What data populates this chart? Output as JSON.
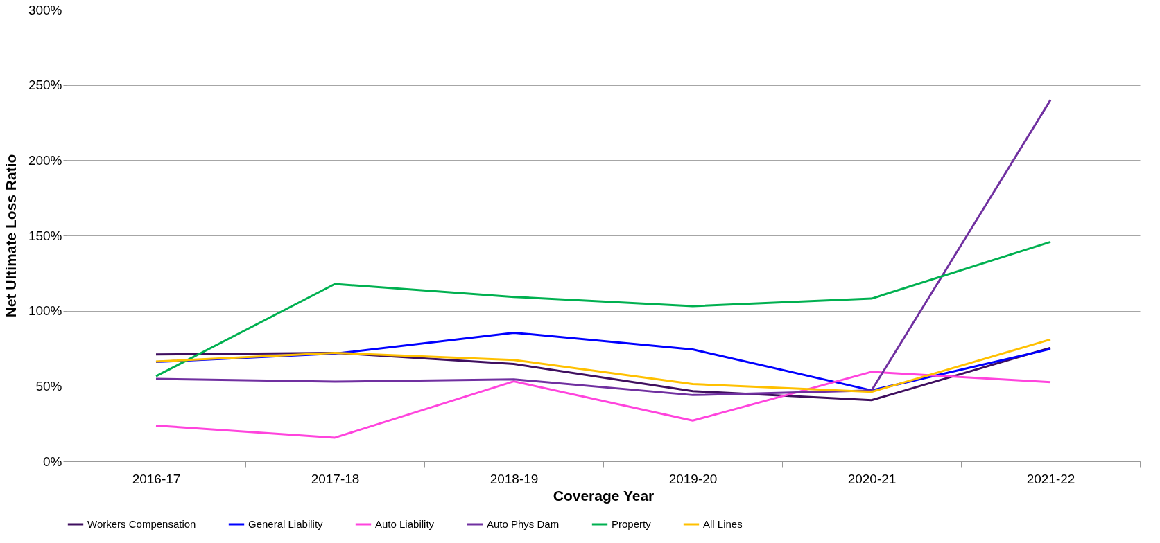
{
  "chart_data": {
    "type": "line",
    "xlabel": "Coverage Year",
    "ylabel": "Net Ultimate Loss Ratio",
    "categories": [
      "2016-17",
      "2017-18",
      "2018-19",
      "2019-20",
      "2020-21",
      "2021-22"
    ],
    "series": [
      {
        "name": "Workers Compensation",
        "color": "#3f0f5f",
        "values": [
          71,
          72,
          64.6,
          46.6,
          40.6,
          75.4
        ]
      },
      {
        "name": "General Liability",
        "color": "#0000ff",
        "values": [
          66,
          71.5,
          85.4,
          74.3,
          47.1,
          74.6
        ]
      },
      {
        "name": "Auto Liability",
        "color": "#ff44dd",
        "values": [
          23.7,
          15.7,
          53.1,
          27,
          59.4,
          52.6
        ]
      },
      {
        "name": "Auto Phys Dam",
        "color": "#7030a0",
        "values": [
          54.7,
          52.9,
          54.4,
          44,
          47,
          240
        ]
      },
      {
        "name": "Property",
        "color": "#00b050",
        "values": [
          56.5,
          117.8,
          109.2,
          103.1,
          108.1,
          145.7
        ]
      },
      {
        "name": "All Lines",
        "color": "#ffc000",
        "values": [
          66.3,
          72,
          67.3,
          51.3,
          46.1,
          80.9
        ]
      }
    ],
    "ylim": [
      0,
      300
    ],
    "yticks": [
      {
        "value": 0,
        "label": "0%"
      },
      {
        "value": 50,
        "label": "50%"
      },
      {
        "value": 100,
        "label": "100%"
      },
      {
        "value": 150,
        "label": "150%"
      },
      {
        "value": 200,
        "label": "200%"
      },
      {
        "value": 250,
        "label": "250%"
      },
      {
        "value": 300,
        "label": "300%"
      }
    ],
    "grid": "y",
    "legend": "bottom",
    "marker": "none",
    "line_style": "solid"
  }
}
